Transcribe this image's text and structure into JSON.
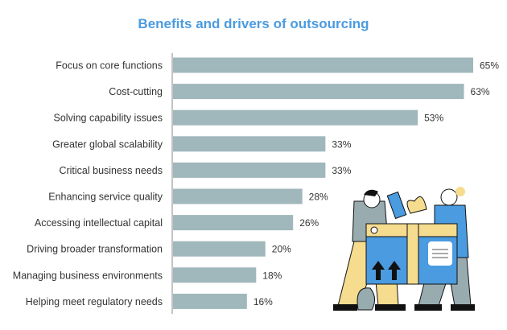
{
  "chart_data": {
    "type": "bar",
    "orientation": "horizontal",
    "title": "Benefits and drivers of outsourcing",
    "categories": [
      "Focus on core functions",
      "Cost-cutting",
      "Solving capability issues",
      "Greater global scalability",
      "Critical business needs",
      "Enhancing service quality",
      "Accessing intellectual capital",
      "Driving broader transformation",
      "Managing business environments",
      "Helping meet regulatory needs"
    ],
    "values": [
      65,
      63,
      53,
      33,
      33,
      28,
      26,
      20,
      18,
      16
    ],
    "value_suffix": "%",
    "bar_color": "#a0b7bc",
    "title_color": "#4a9be0",
    "grid": false,
    "xlim": [
      0,
      65
    ]
  }
}
